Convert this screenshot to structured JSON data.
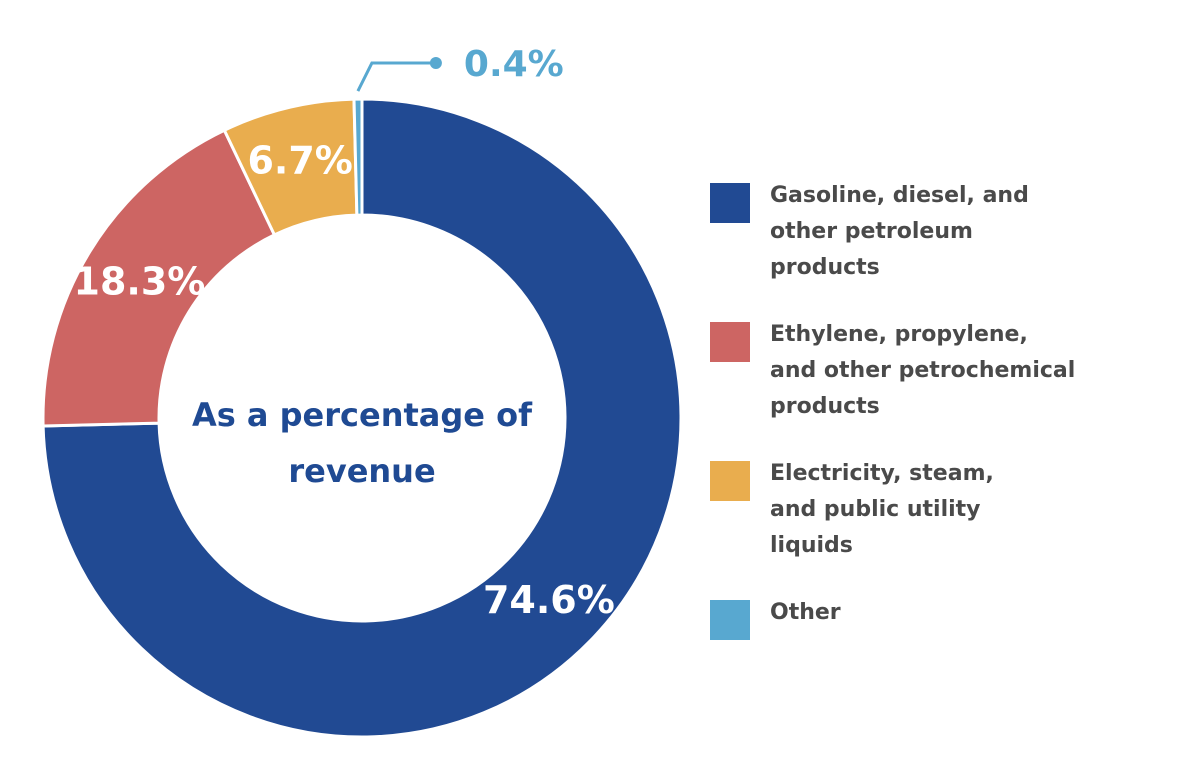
{
  "chart_data": {
    "type": "pie",
    "title": "",
    "center_text": [
      "As a percentage of",
      "revenue"
    ],
    "slices": [
      {
        "name": "Gasoline, diesel, and\nother petroleum\nproducts",
        "value": 74.6,
        "label": "74.6%",
        "color": "#214a93"
      },
      {
        "name": "Ethylene, propylene,\nand other petrochemical\nproducts",
        "value": 18.3,
        "label": "18.3%",
        "color": "#cd6563"
      },
      {
        "name": "Electricity, steam,\nand public utility\nliquids",
        "value": 6.7,
        "label": "6.7%",
        "color": "#e9ad4e"
      },
      {
        "name": "Other",
        "value": 0.4,
        "label": "0.4%",
        "color": "#58a8d0"
      }
    ],
    "legend_position": "right"
  }
}
